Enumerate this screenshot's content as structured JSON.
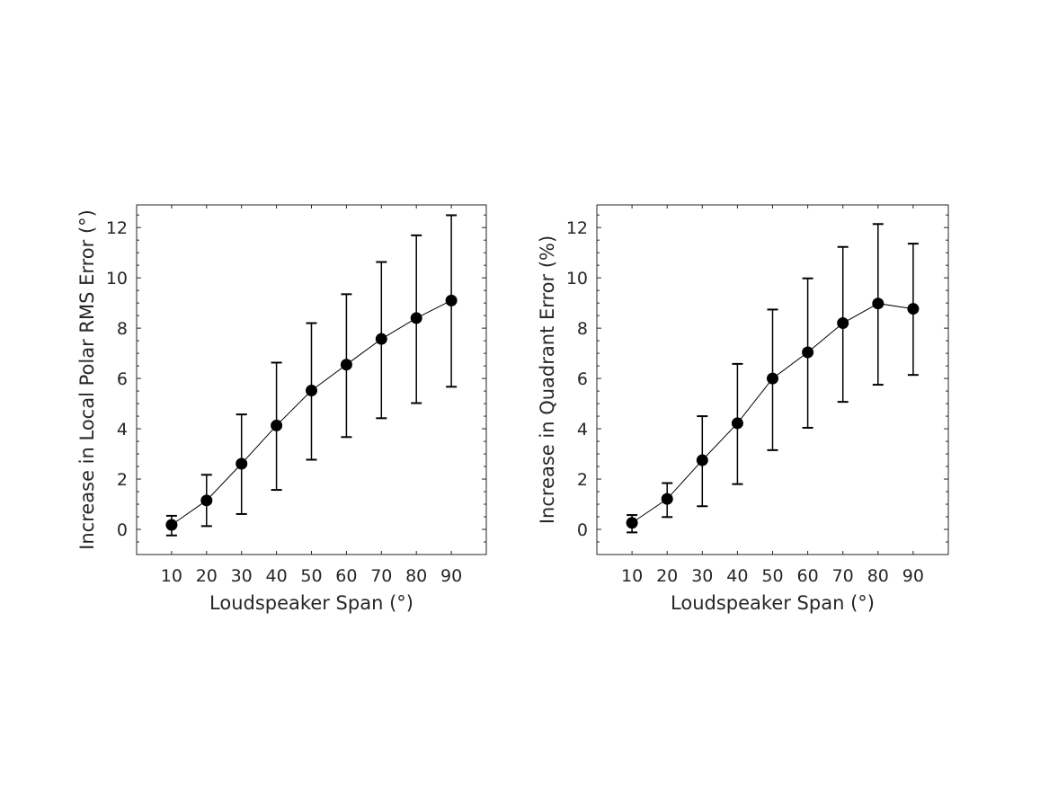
{
  "chart_data": [
    {
      "type": "line",
      "error_bars": true,
      "xlabel": "Loudspeaker Span (°)",
      "ylabel": "Increase in Local Polar RMS Error (°)",
      "xlim": [
        0,
        100
      ],
      "ylim": [
        -1,
        12.9
      ],
      "xticks": [
        10,
        20,
        30,
        40,
        50,
        60,
        70,
        80,
        90
      ],
      "yticks": [
        0,
        2,
        4,
        6,
        8,
        10,
        12
      ],
      "grid": false,
      "x": [
        10,
        20,
        30,
        40,
        50,
        60,
        70,
        80,
        90
      ],
      "y": [
        0.18,
        1.15,
        2.61,
        4.13,
        5.52,
        6.55,
        7.57,
        8.4,
        9.1
      ],
      "y_upper": [
        0.54,
        2.17,
        4.57,
        6.63,
        8.2,
        9.35,
        10.63,
        11.69,
        12.49
      ],
      "y_lower": [
        -0.24,
        0.13,
        0.61,
        1.57,
        2.77,
        3.67,
        4.42,
        5.02,
        5.67
      ],
      "color": "#000000"
    },
    {
      "type": "line",
      "error_bars": true,
      "xlabel": "Loudspeaker Span (°)",
      "ylabel": "Increase in Quadrant Error (%)",
      "xlim": [
        0,
        100
      ],
      "ylim": [
        -1,
        12.9
      ],
      "xticks": [
        10,
        20,
        30,
        40,
        50,
        60,
        70,
        80,
        90
      ],
      "yticks": [
        0,
        2,
        4,
        6,
        8,
        10,
        12
      ],
      "grid": false,
      "x": [
        10,
        20,
        30,
        40,
        50,
        60,
        70,
        80,
        90
      ],
      "y": [
        0.26,
        1.21,
        2.75,
        4.22,
        6.0,
        7.04,
        8.2,
        8.98,
        8.77
      ],
      "y_upper": [
        0.57,
        1.84,
        4.5,
        6.58,
        8.74,
        9.98,
        11.23,
        12.14,
        11.36
      ],
      "y_lower": [
        -0.12,
        0.49,
        0.92,
        1.8,
        3.15,
        4.04,
        5.07,
        5.75,
        6.14
      ],
      "color": "#000000"
    }
  ]
}
